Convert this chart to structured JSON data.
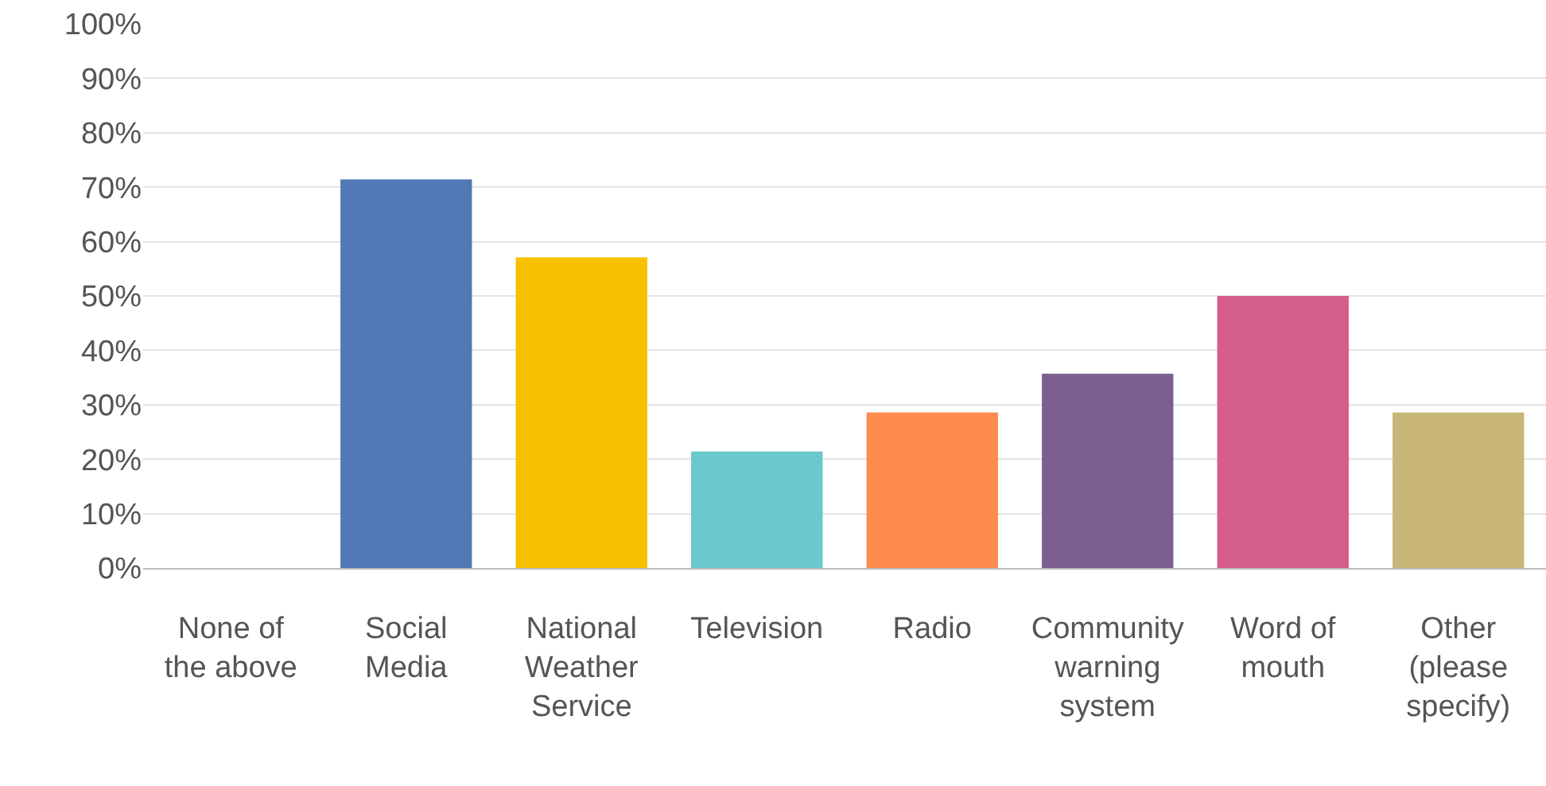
{
  "chart_data": {
    "type": "bar",
    "categories": [
      "None of the above",
      "Social Media",
      "National Weather Service",
      "Television",
      "Radio",
      "Community warning system",
      "Word of mouth",
      "Other (please specify)"
    ],
    "values": [
      0,
      71.4,
      57.1,
      21.4,
      28.6,
      35.7,
      50,
      28.6
    ],
    "colors": [
      "#5079b5",
      "#5079b5",
      "#f7c000",
      "#6bc8cd",
      "#ff8b4f",
      "#7c5e91",
      "#d45d8c",
      "#c7b677"
    ],
    "ylim": [
      0,
      100
    ],
    "yticks": [
      {
        "value": 0,
        "label": "0%"
      },
      {
        "value": 10,
        "label": "10%"
      },
      {
        "value": 20,
        "label": "20%"
      },
      {
        "value": 30,
        "label": "30%"
      },
      {
        "value": 40,
        "label": "40%"
      },
      {
        "value": 50,
        "label": "50%"
      },
      {
        "value": 60,
        "label": "60%"
      },
      {
        "value": 70,
        "label": "70%"
      },
      {
        "value": 80,
        "label": "80%"
      },
      {
        "value": 90,
        "label": "90%"
      },
      {
        "value": 100,
        "label": "100%"
      }
    ],
    "grid": "y",
    "legend": false
  }
}
